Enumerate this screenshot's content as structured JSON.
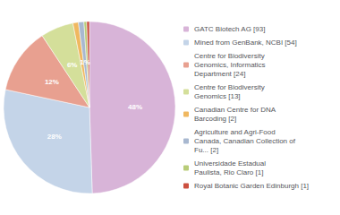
{
  "chart_data": {
    "type": "pie",
    "categories": [
      "GATC Biotech AG [93]",
      "Mined from GenBank, NCBI [54]",
      "Centre for Biodiversity\nGenomics, Informatics\nDepartment [24]",
      "Centre for Biodiversity\nGenomics [13]",
      "Canadian Centre for DNA\nBarcoding [2]",
      "Agriculture and Agri-Food\nCanada, Canadian Collection of\nFu... [2]",
      "Universidade Estadual\nPaulista, Rio Claro [1]",
      "Royal Botanic Garden Edinburgh [1]"
    ],
    "values": [
      48,
      28,
      12,
      6,
      1,
      1,
      0.5,
      0.5
    ],
    "value_labels": [
      "48%",
      "28%",
      "12%",
      "6%",
      "1%",
      "1%",
      null,
      null
    ],
    "colors": [
      "#d8b4d8",
      "#c4d4e8",
      "#e8a090",
      "#d4df9a",
      "#f0b860",
      "#a8b8d0",
      "#b8cc78",
      "#cc5040"
    ],
    "data_labels": true,
    "legend": "right"
  }
}
